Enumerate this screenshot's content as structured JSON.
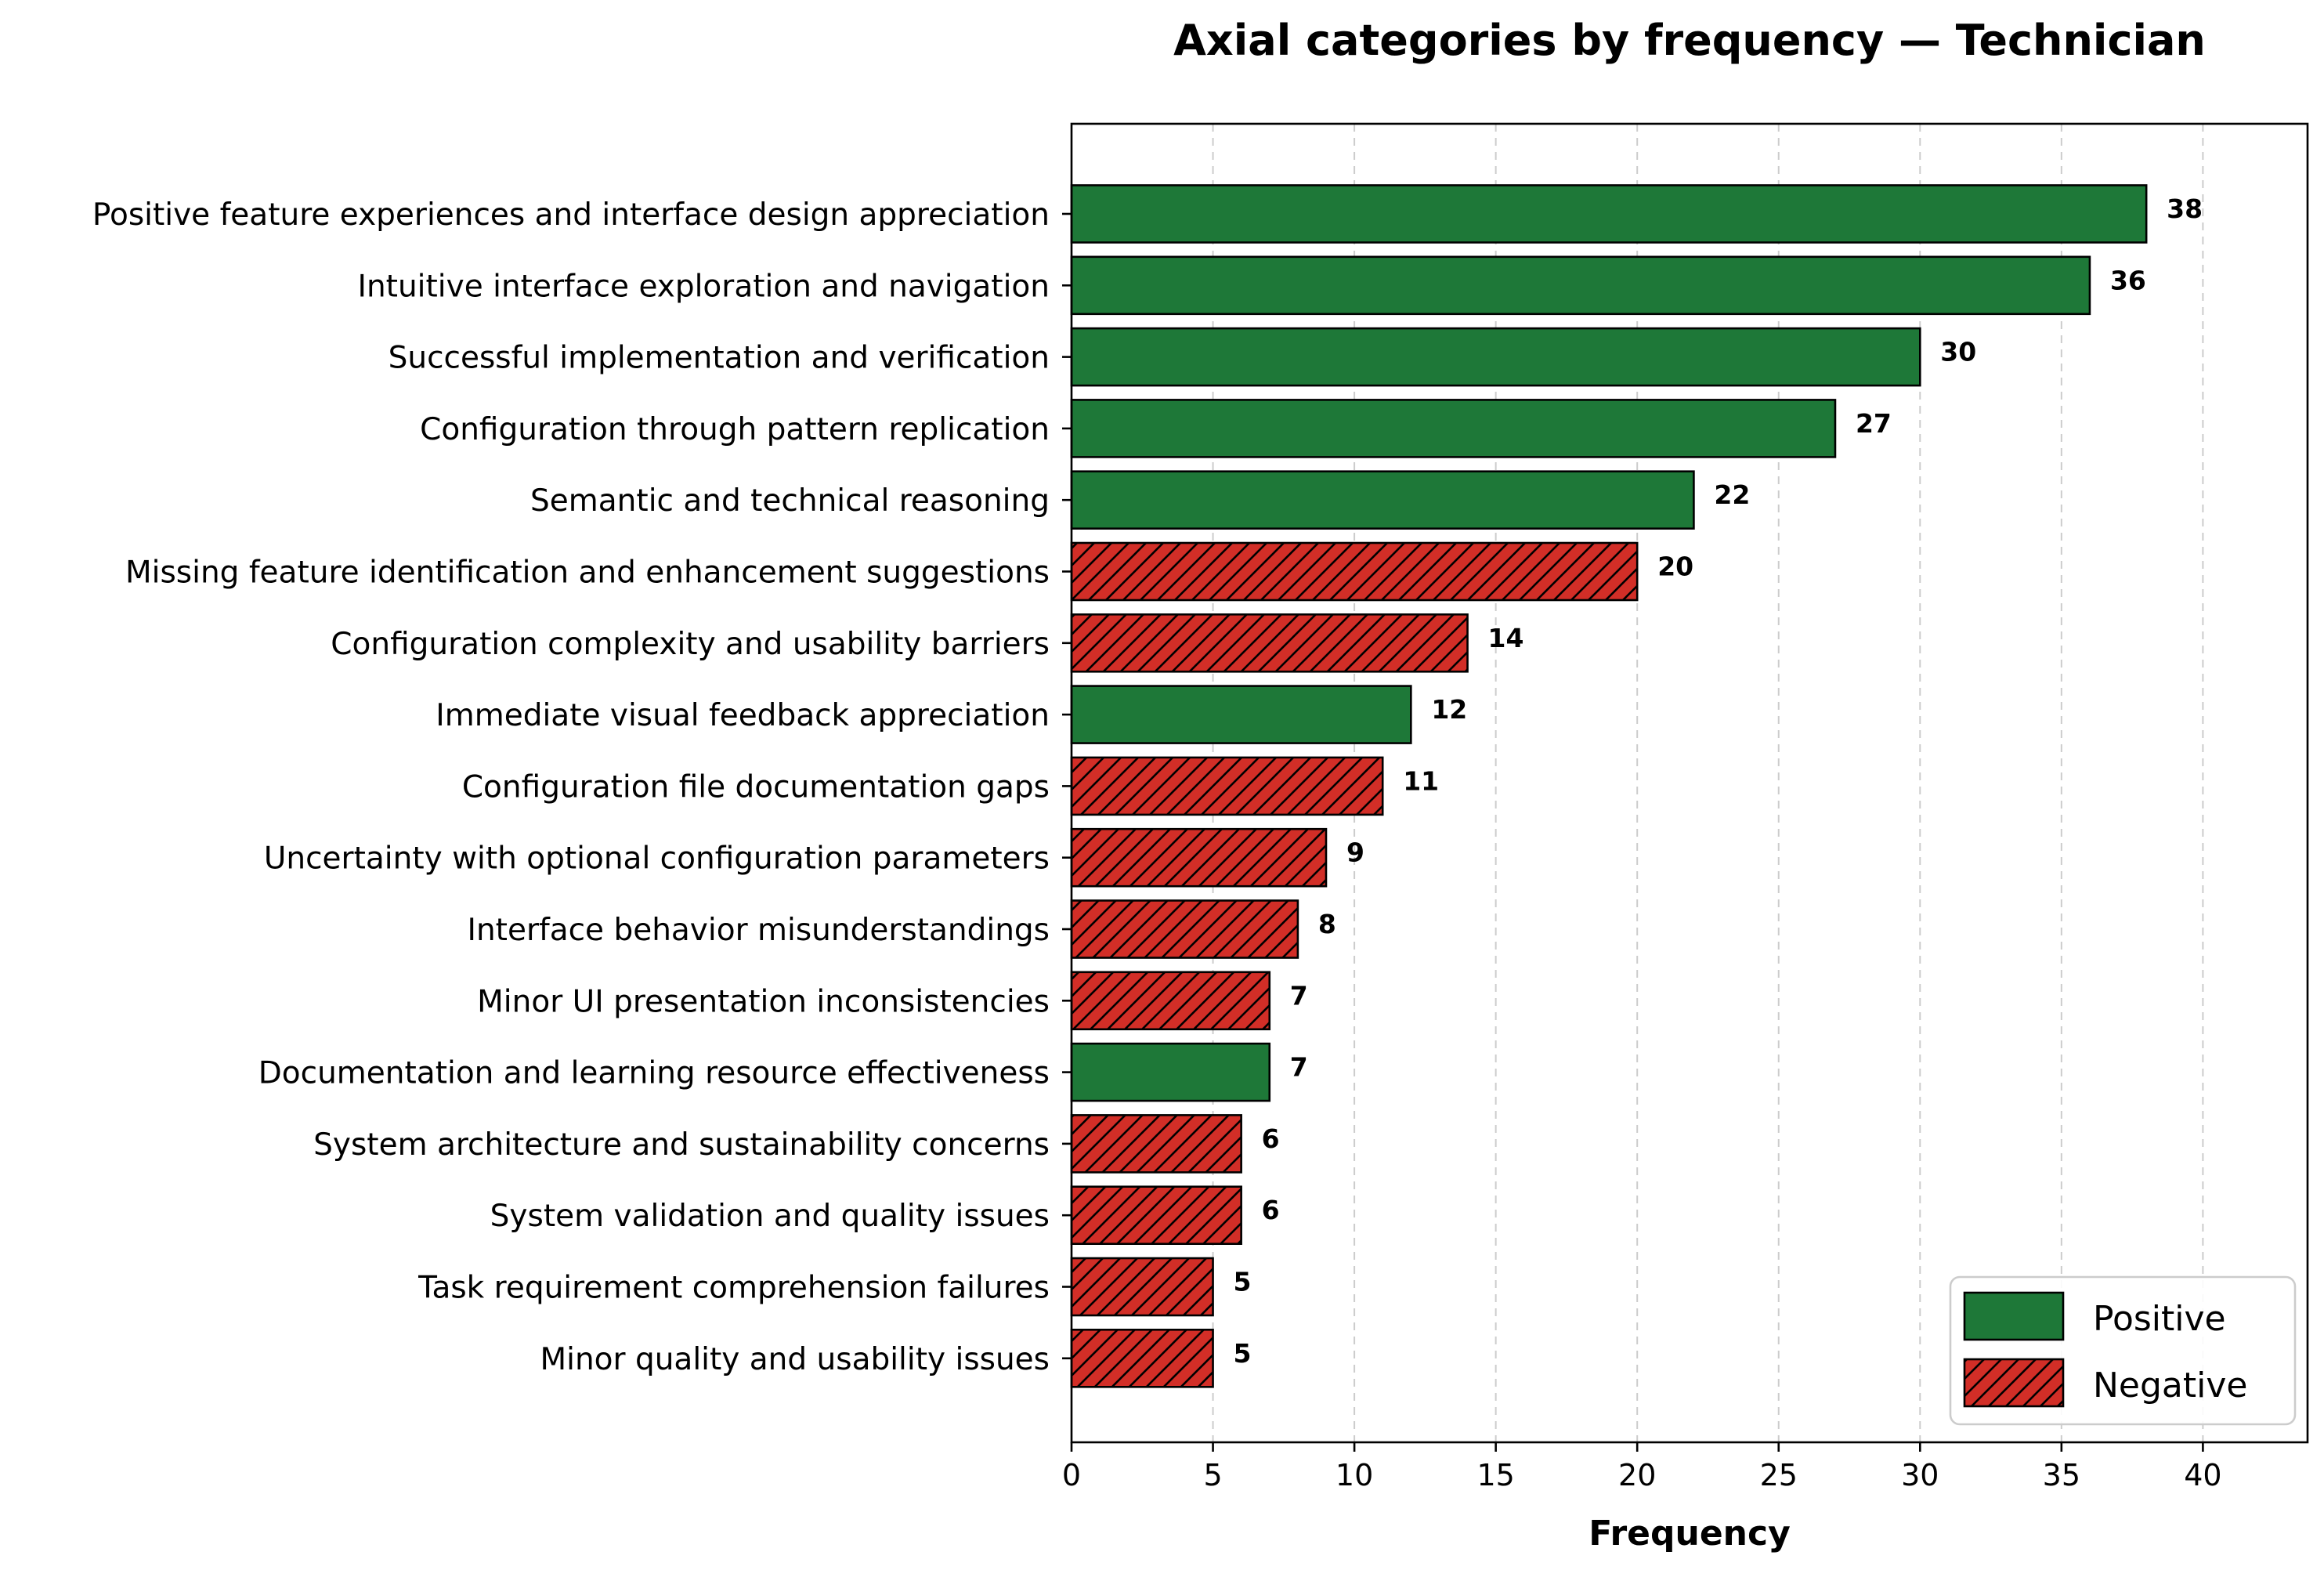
{
  "chart_data": {
    "type": "bar",
    "orientation": "horizontal",
    "title": "Axial categories by frequency — Technician",
    "xlabel": "Frequency",
    "ylabel": "",
    "xlim": [
      0,
      43.7
    ],
    "xticks": [
      0,
      5,
      10,
      15,
      20,
      25,
      30,
      35,
      40
    ],
    "grid": "x, dashed",
    "legend": {
      "placement": "bottom-right",
      "entries": [
        {
          "name": "Positive",
          "color": "#1e7838",
          "hatch": false
        },
        {
          "name": "Negative",
          "color": "#d22e27",
          "hatch": true
        }
      ]
    },
    "bars": [
      {
        "category": "Positive feature experiences and interface design appreciation",
        "value": 38,
        "sentiment": "Positive"
      },
      {
        "category": "Intuitive interface exploration and navigation",
        "value": 36,
        "sentiment": "Positive"
      },
      {
        "category": "Successful implementation and verification",
        "value": 30,
        "sentiment": "Positive"
      },
      {
        "category": "Configuration through pattern replication",
        "value": 27,
        "sentiment": "Positive"
      },
      {
        "category": "Semantic and technical reasoning",
        "value": 22,
        "sentiment": "Positive"
      },
      {
        "category": "Missing feature identification and enhancement suggestions",
        "value": 20,
        "sentiment": "Negative"
      },
      {
        "category": "Configuration complexity and usability barriers",
        "value": 14,
        "sentiment": "Negative"
      },
      {
        "category": "Immediate visual feedback appreciation",
        "value": 12,
        "sentiment": "Positive"
      },
      {
        "category": "Configuration file documentation gaps",
        "value": 11,
        "sentiment": "Negative"
      },
      {
        "category": "Uncertainty with optional configuration parameters",
        "value": 9,
        "sentiment": "Negative"
      },
      {
        "category": "Interface behavior misunderstandings",
        "value": 8,
        "sentiment": "Negative"
      },
      {
        "category": "Minor UI presentation inconsistencies",
        "value": 7,
        "sentiment": "Negative"
      },
      {
        "category": "Documentation and learning resource effectiveness",
        "value": 7,
        "sentiment": "Positive"
      },
      {
        "category": "System architecture and sustainability concerns",
        "value": 6,
        "sentiment": "Negative"
      },
      {
        "category": "System validation and quality issues",
        "value": 6,
        "sentiment": "Negative"
      },
      {
        "category": "Task requirement comprehension failures",
        "value": 5,
        "sentiment": "Negative"
      },
      {
        "category": "Minor quality and usability issues",
        "value": 5,
        "sentiment": "Negative"
      }
    ]
  }
}
